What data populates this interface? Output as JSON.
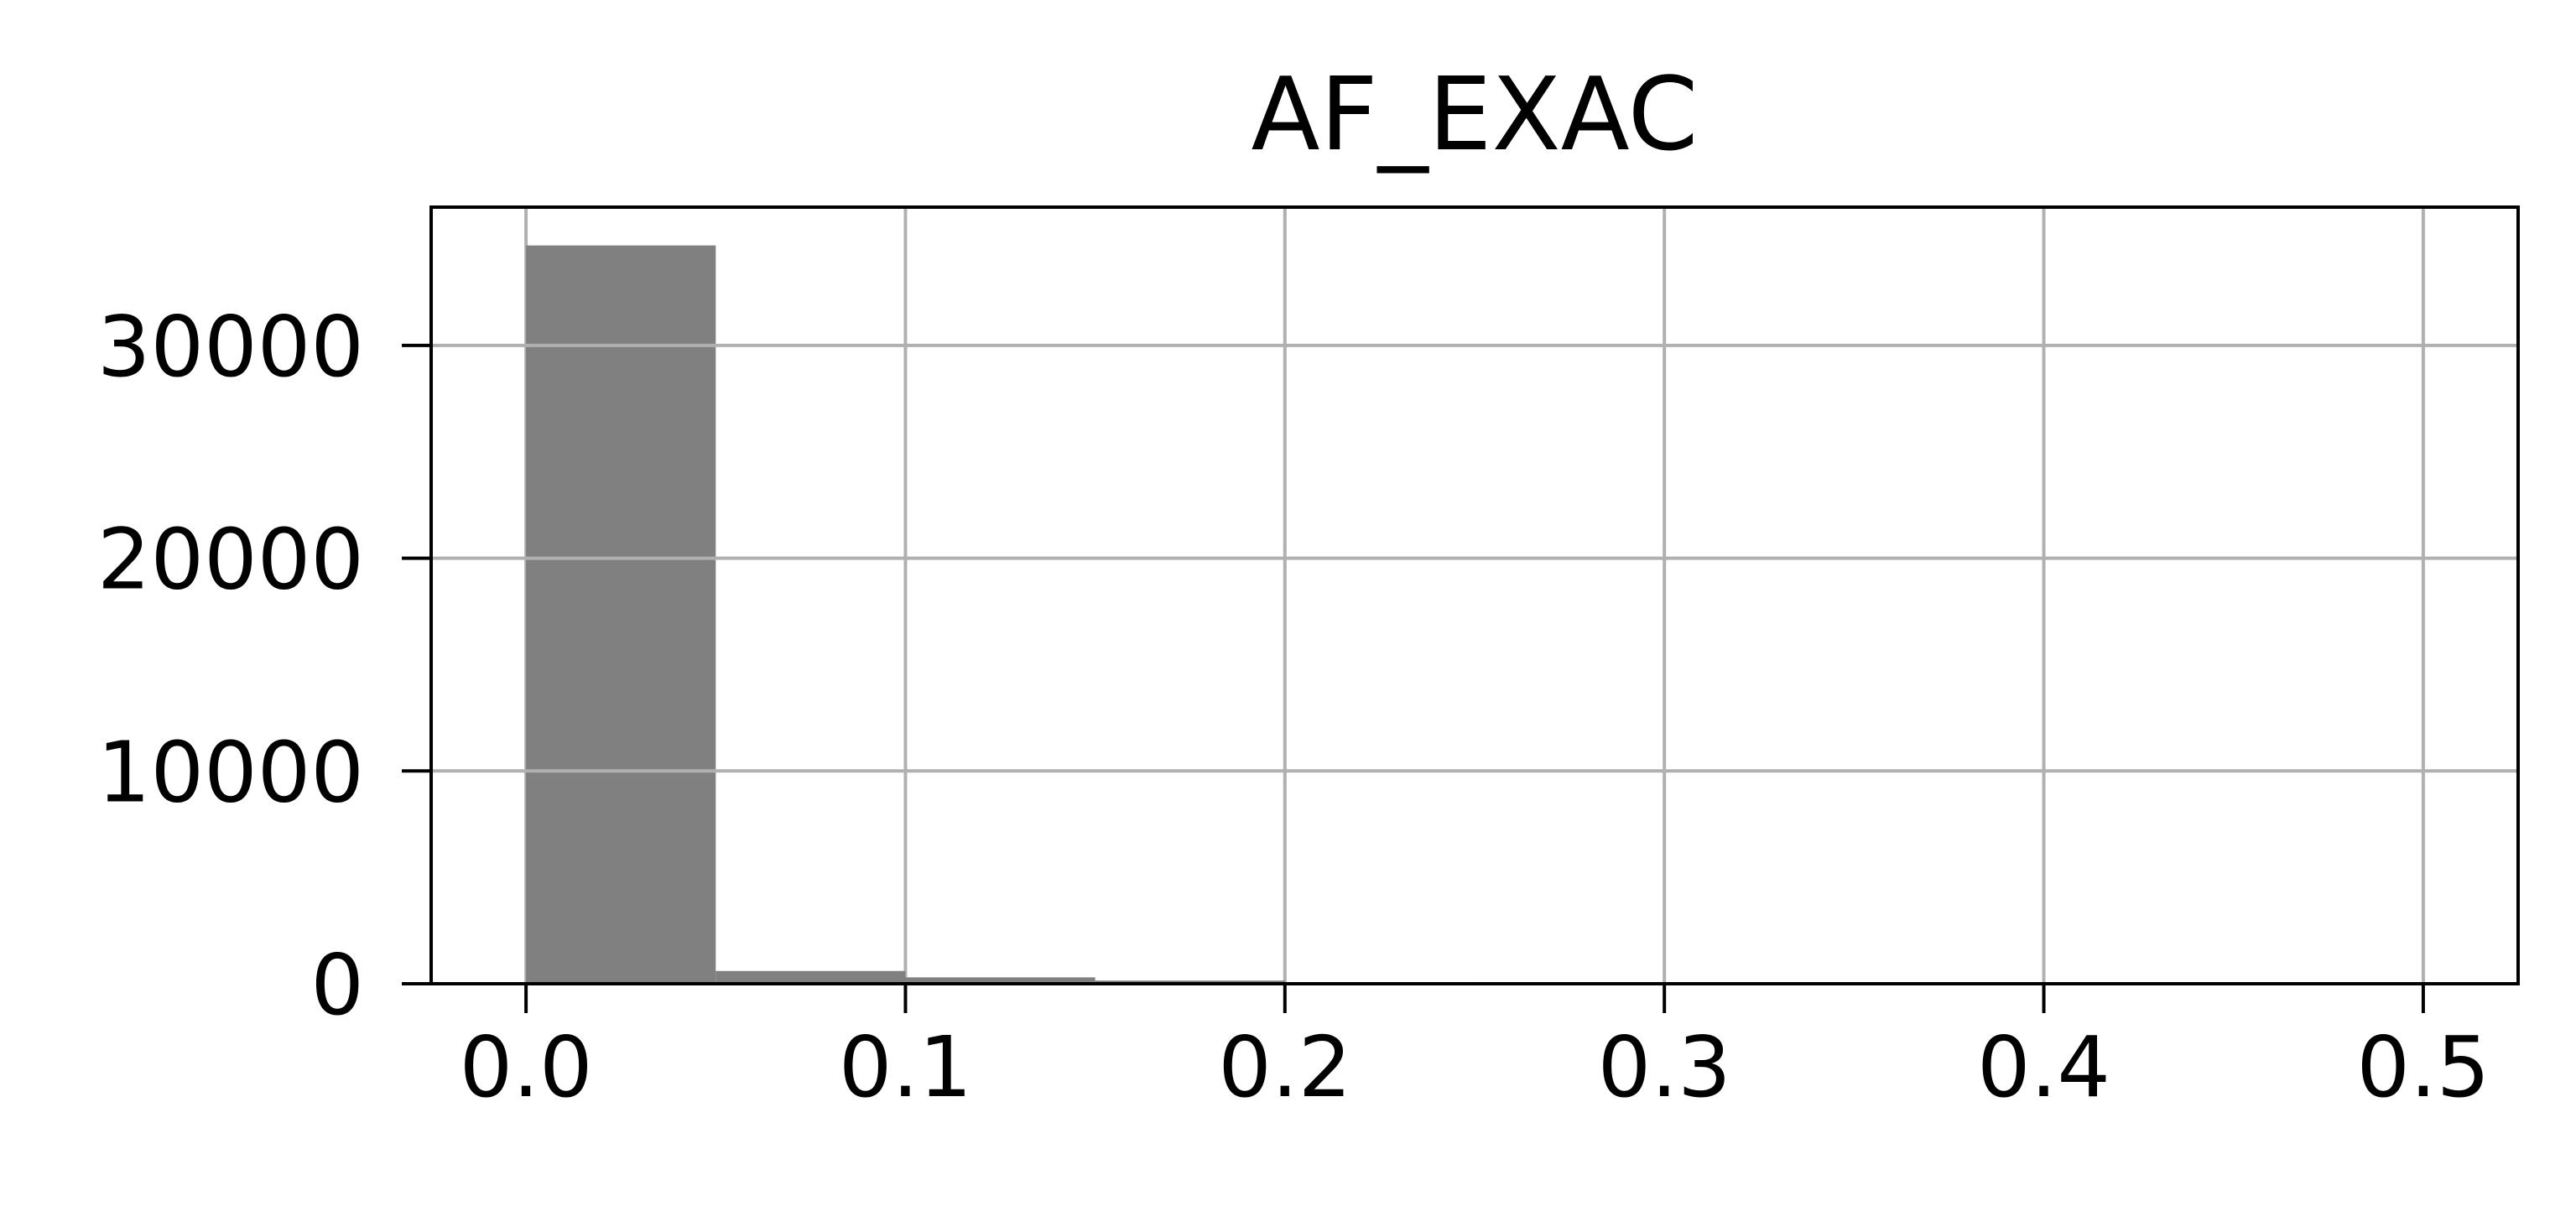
{
  "chart_data": {
    "type": "bar",
    "title": "AF_EXAC",
    "xlabel": "",
    "ylabel": "",
    "x_range": [
      -0.025,
      0.525
    ],
    "ylim": [
      0,
      36500
    ],
    "bin_edges": [
      0.0,
      0.05,
      0.1,
      0.15,
      0.2,
      0.25,
      0.3,
      0.35,
      0.4,
      0.45,
      0.5
    ],
    "values": [
      34700,
      600,
      300,
      150,
      80,
      50,
      30,
      20,
      10,
      10
    ],
    "x_ticks": [
      0.0,
      0.1,
      0.2,
      0.3,
      0.4,
      0.5
    ],
    "x_tick_labels": [
      "0.0",
      "0.1",
      "0.2",
      "0.3",
      "0.4",
      "0.5"
    ],
    "y_ticks": [
      0,
      10000,
      20000,
      30000
    ],
    "y_tick_labels": [
      "0",
      "10000",
      "20000",
      "30000"
    ],
    "grid": true,
    "colors": {
      "bar": "#808080",
      "grid": "#b0b0b0",
      "axis": "#000000"
    }
  }
}
